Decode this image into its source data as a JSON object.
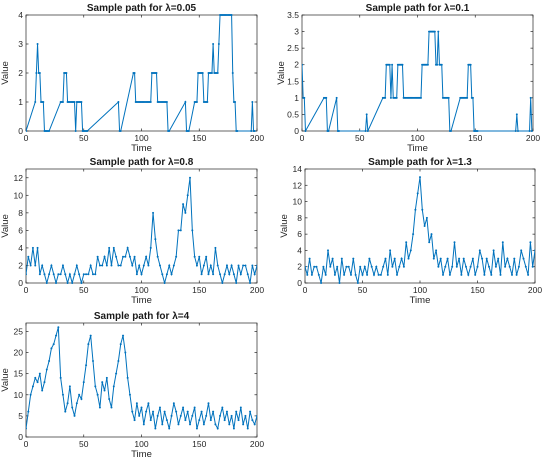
{
  "colors": {
    "line": "#0072BD",
    "axes": "#262626"
  },
  "chart_data": [
    {
      "type": "line",
      "title": "Sample path for λ=0.05",
      "xlabel": "Time",
      "ylabel": "Value",
      "xlim": [
        0,
        200
      ],
      "ylim": [
        0,
        4
      ],
      "xticks": [
        0,
        50,
        100,
        150,
        200
      ],
      "yticks": [
        0,
        1,
        2,
        3,
        4
      ],
      "yticklabels": [
        "0",
        "1",
        "2",
        "3",
        "4"
      ],
      "grid": false,
      "series": [
        {
          "x": [
            0,
            8,
            9,
            10,
            11,
            12,
            13,
            14,
            15,
            16,
            17,
            18,
            19,
            20,
            30,
            31,
            32,
            33,
            34,
            35,
            36,
            37,
            38,
            39,
            40,
            41,
            42,
            43,
            44,
            45,
            46,
            47,
            48,
            49,
            50,
            51,
            52,
            53,
            80,
            81,
            82,
            93,
            94,
            95,
            96,
            97,
            98,
            99,
            100,
            101,
            102,
            103,
            104,
            105,
            106,
            107,
            108,
            109,
            110,
            111,
            112,
            113,
            114,
            115,
            116,
            117,
            118,
            119,
            120,
            121,
            122,
            123,
            124,
            138,
            139,
            140,
            141,
            146,
            147,
            148,
            149,
            150,
            151,
            152,
            153,
            154,
            155,
            156,
            157,
            158,
            159,
            160,
            161,
            162,
            163,
            164,
            165,
            166,
            167,
            168,
            169,
            170,
            171,
            172,
            173,
            174,
            175,
            176,
            177,
            178,
            179,
            180,
            181,
            182,
            183,
            195,
            196,
            197,
            198
          ],
          "y": [
            0,
            1,
            2,
            3,
            2,
            2,
            1,
            1,
            1,
            0,
            0,
            0,
            0,
            0,
            1,
            1,
            1,
            2,
            2,
            2,
            1,
            1,
            1,
            1,
            1,
            1,
            1,
            0,
            1,
            1,
            1,
            1,
            1,
            0,
            0,
            0,
            0,
            0,
            1,
            0,
            0,
            2,
            2,
            1,
            1,
            1,
            1,
            1,
            1,
            1,
            1,
            1,
            1,
            1,
            1,
            1,
            1,
            2,
            2,
            2,
            2,
            2,
            1,
            1,
            1,
            1,
            1,
            1,
            1,
            1,
            1,
            0,
            0,
            1,
            0,
            0,
            0,
            1,
            1,
            1,
            2,
            2,
            2,
            2,
            2,
            1,
            1,
            1,
            1,
            2,
            2,
            2,
            2,
            3,
            2,
            2,
            2,
            2,
            3,
            4,
            4,
            4,
            4,
            4,
            4,
            4,
            4,
            4,
            4,
            4,
            2,
            1,
            1,
            0,
            0,
            0,
            1,
            0,
            0
          ]
        }
      ]
    },
    {
      "type": "line",
      "title": "Sample path for λ=0.1",
      "xlabel": "Time",
      "ylabel": "Value",
      "xlim": [
        0,
        200
      ],
      "ylim": [
        0,
        3.5
      ],
      "xticks": [
        0,
        50,
        100,
        150,
        200
      ],
      "yticks": [
        0,
        0.5,
        1,
        1.5,
        2,
        2.5,
        3,
        3.5
      ],
      "yticklabels": [
        "0",
        "0.5",
        "1",
        "1.5",
        "2",
        "2.5",
        "3",
        "3.5"
      ],
      "grid": false,
      "series": [
        {
          "x": [
            0,
            1,
            2,
            3,
            19,
            20,
            21,
            22,
            23,
            30,
            31,
            32,
            55,
            56,
            57,
            70,
            71,
            72,
            73,
            74,
            75,
            76,
            77,
            78,
            79,
            80,
            81,
            82,
            83,
            84,
            85,
            86,
            87,
            88,
            89,
            90,
            91,
            92,
            93,
            94,
            95,
            96,
            97,
            98,
            99,
            100,
            101,
            102,
            103,
            104,
            105,
            106,
            107,
            108,
            109,
            110,
            111,
            112,
            113,
            114,
            115,
            116,
            117,
            118,
            119,
            120,
            121,
            122,
            123,
            124,
            125,
            126,
            127,
            128,
            129,
            137,
            138,
            139,
            140,
            141,
            142,
            143,
            144,
            145,
            146,
            147,
            148,
            149,
            150,
            151,
            152,
            185,
            186,
            187,
            197,
            198,
            199
          ],
          "y": [
            2,
            1,
            1,
            0,
            1,
            1,
            1,
            0,
            0,
            1,
            0,
            0,
            0,
            0.5,
            0,
            1,
            1,
            1,
            2,
            2,
            2,
            2,
            1,
            2,
            1,
            1,
            1,
            1,
            2,
            2,
            2,
            2,
            2,
            1,
            1,
            1,
            1,
            1,
            1,
            1,
            1,
            1,
            1,
            1,
            1,
            1,
            1,
            1,
            1,
            2,
            2,
            2,
            2,
            2,
            2,
            3,
            3,
            3,
            3,
            3,
            3,
            2,
            2,
            3,
            2,
            2,
            2,
            1,
            1,
            1,
            1,
            1,
            1,
            0,
            0,
            1,
            1,
            1,
            1,
            1,
            1,
            1,
            2,
            2,
            2,
            1,
            1,
            0,
            0,
            0,
            0,
            0,
            0.5,
            0,
            0,
            1,
            0
          ]
        }
      ]
    },
    {
      "type": "line",
      "title": "Sample path for λ=0.8",
      "xlabel": "Time",
      "ylabel": "Value",
      "xlim": [
        0,
        200
      ],
      "ylim": [
        0,
        13
      ],
      "xticks": [
        0,
        50,
        100,
        150,
        200
      ],
      "yticks": [
        0,
        2,
        4,
        6,
        8,
        10,
        12
      ],
      "yticklabels": [
        "0",
        "2",
        "4",
        "6",
        "8",
        "10",
        "12"
      ],
      "grid": false,
      "series": [
        {
          "x": [
            0,
            2,
            4,
            6,
            8,
            10,
            12,
            14,
            16,
            18,
            20,
            22,
            24,
            26,
            28,
            30,
            32,
            34,
            36,
            38,
            40,
            42,
            44,
            46,
            48,
            50,
            52,
            54,
            56,
            58,
            60,
            62,
            64,
            66,
            68,
            70,
            72,
            74,
            76,
            78,
            80,
            82,
            84,
            86,
            88,
            90,
            92,
            94,
            96,
            98,
            100,
            102,
            104,
            106,
            108,
            110,
            112,
            114,
            116,
            118,
            120,
            122,
            124,
            126,
            128,
            130,
            132,
            134,
            136,
            138,
            140,
            142,
            144,
            146,
            148,
            150,
            152,
            154,
            156,
            158,
            160,
            162,
            164,
            166,
            168,
            170,
            172,
            174,
            176,
            178,
            180,
            182,
            184,
            186,
            188,
            190,
            192,
            194,
            196,
            198,
            200
          ],
          "y": [
            1,
            3,
            2,
            4,
            2,
            4,
            1,
            2,
            1,
            0,
            1,
            2,
            1,
            0,
            1,
            1,
            2,
            1,
            0,
            1,
            0,
            1,
            2,
            1,
            0,
            1,
            1,
            1,
            2,
            1,
            1,
            3,
            2,
            2,
            3,
            2,
            4,
            2,
            4,
            3,
            2,
            2,
            3,
            3,
            4,
            3,
            2,
            3,
            1,
            2,
            1,
            2,
            3,
            2,
            4,
            8,
            5,
            3,
            2,
            1,
            0,
            1,
            2,
            1,
            2,
            3,
            6,
            6,
            9,
            8,
            10,
            12,
            6,
            3,
            2,
            3,
            1,
            2,
            3,
            1,
            2,
            1,
            4,
            2,
            1,
            0,
            1,
            2,
            1,
            2,
            1,
            0,
            2,
            1,
            2,
            2,
            1,
            0,
            2,
            1,
            2
          ]
        }
      ]
    },
    {
      "type": "line",
      "title": "Sample path for λ=1.3",
      "xlabel": "Time",
      "ylabel": "Value",
      "xlim": [
        0,
        200
      ],
      "ylim": [
        0,
        14
      ],
      "xticks": [
        0,
        50,
        100,
        150,
        200
      ],
      "yticks": [
        0,
        2,
        4,
        6,
        8,
        10,
        12,
        14
      ],
      "yticklabels": [
        "0",
        "2",
        "4",
        "6",
        "8",
        "10",
        "12",
        "14"
      ],
      "grid": false,
      "series": [
        {
          "x": [
            0,
            2,
            4,
            6,
            8,
            10,
            12,
            14,
            16,
            18,
            20,
            22,
            24,
            26,
            28,
            30,
            32,
            34,
            36,
            38,
            40,
            42,
            44,
            46,
            48,
            50,
            52,
            54,
            56,
            58,
            60,
            62,
            64,
            66,
            68,
            70,
            72,
            74,
            76,
            78,
            80,
            82,
            84,
            86,
            88,
            90,
            92,
            94,
            96,
            98,
            100,
            102,
            104,
            106,
            108,
            110,
            112,
            114,
            116,
            118,
            120,
            122,
            124,
            126,
            128,
            130,
            132,
            134,
            136,
            138,
            140,
            142,
            144,
            146,
            148,
            150,
            152,
            154,
            156,
            158,
            160,
            162,
            164,
            166,
            168,
            170,
            172,
            174,
            176,
            178,
            180,
            182,
            184,
            186,
            188,
            190,
            192,
            194,
            196,
            198,
            200
          ],
          "y": [
            2,
            1,
            3,
            1,
            2,
            2,
            1,
            0,
            2,
            1,
            4,
            2,
            3,
            1,
            2,
            0,
            3,
            1,
            2,
            2,
            1,
            3,
            1,
            0,
            2,
            1,
            2,
            1,
            3,
            2,
            1,
            2,
            1,
            1,
            2,
            3,
            1,
            4,
            2,
            3,
            1,
            2,
            3,
            2,
            5,
            3,
            4,
            6,
            9,
            11,
            13,
            9,
            7,
            8,
            5,
            6,
            3,
            4,
            2,
            3,
            1,
            2,
            3,
            1,
            2,
            5,
            2,
            3,
            1,
            3,
            2,
            1,
            2,
            3,
            1,
            2,
            4,
            3,
            1,
            3,
            2,
            1,
            4,
            2,
            3,
            1,
            5,
            2,
            3,
            2,
            1,
            3,
            1,
            2,
            4,
            3,
            2,
            1,
            5,
            2,
            4
          ]
        }
      ]
    },
    {
      "type": "line",
      "title": "Sample path for λ=4",
      "xlabel": "Time",
      "ylabel": "Value",
      "xlim": [
        0,
        200
      ],
      "ylim": [
        0,
        27
      ],
      "xticks": [
        0,
        50,
        100,
        150,
        200
      ],
      "yticks": [
        0,
        5,
        10,
        15,
        20,
        25
      ],
      "yticklabels": [
        "0",
        "5",
        "10",
        "15",
        "20",
        "25"
      ],
      "grid": false,
      "series": [
        {
          "x": [
            0,
            2,
            4,
            6,
            8,
            10,
            12,
            14,
            16,
            18,
            20,
            22,
            24,
            26,
            28,
            30,
            32,
            34,
            36,
            38,
            40,
            42,
            44,
            46,
            48,
            50,
            52,
            54,
            56,
            58,
            60,
            62,
            64,
            66,
            68,
            70,
            72,
            74,
            76,
            78,
            80,
            82,
            84,
            86,
            88,
            90,
            92,
            94,
            96,
            98,
            100,
            102,
            104,
            106,
            108,
            110,
            112,
            114,
            116,
            118,
            120,
            122,
            124,
            126,
            128,
            130,
            132,
            134,
            136,
            138,
            140,
            142,
            144,
            146,
            148,
            150,
            152,
            154,
            156,
            158,
            160,
            162,
            164,
            166,
            168,
            170,
            172,
            174,
            176,
            178,
            180,
            182,
            184,
            186,
            188,
            190,
            192,
            194,
            196,
            198,
            200
          ],
          "y": [
            2,
            6,
            10,
            12,
            14,
            13,
            15,
            11,
            13,
            16,
            18,
            21,
            22,
            24,
            26,
            14,
            10,
            6,
            8,
            12,
            7,
            5,
            8,
            10,
            9,
            13,
            17,
            22,
            24,
            18,
            12,
            10,
            7,
            13,
            11,
            14,
            9,
            7,
            12,
            15,
            18,
            22,
            24,
            20,
            14,
            10,
            6,
            4,
            8,
            5,
            7,
            3,
            6,
            8,
            4,
            6,
            2,
            5,
            7,
            3,
            6,
            4,
            2,
            5,
            8,
            6,
            3,
            5,
            7,
            4,
            6,
            3,
            5,
            7,
            2,
            4,
            6,
            3,
            5,
            8,
            4,
            6,
            3,
            2,
            5,
            7,
            4,
            6,
            3,
            5,
            2,
            6,
            4,
            7,
            3,
            5,
            2,
            6,
            4,
            3,
            5
          ]
        }
      ]
    }
  ]
}
